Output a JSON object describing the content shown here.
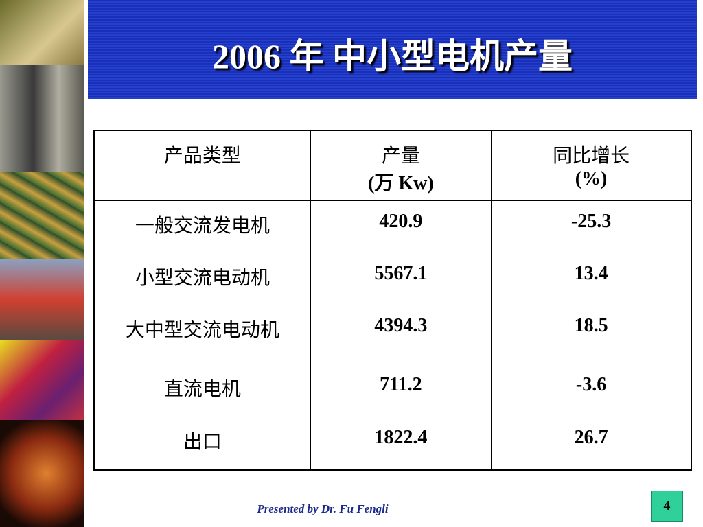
{
  "title": "2006 年 中小型电机产量",
  "table": {
    "header": [
      [
        "产品类型"
      ],
      [
        "产量",
        "(万 Kw)"
      ],
      [
        "同比增长",
        "(%)"
      ]
    ],
    "rows": [
      [
        "一般交流发电机",
        "420.9",
        "-25.3"
      ],
      [
        "小型交流电动机",
        "5567.1",
        "13.4"
      ],
      [
        "大中型交流电动机",
        "4394.3",
        "18.5"
      ],
      [
        "直流电机",
        "711.2",
        "-3.6"
      ],
      [
        "出口",
        "1822.4",
        "26.7"
      ]
    ]
  },
  "footer": "Presented by Dr. Fu Fengli",
  "page_number": "4"
}
